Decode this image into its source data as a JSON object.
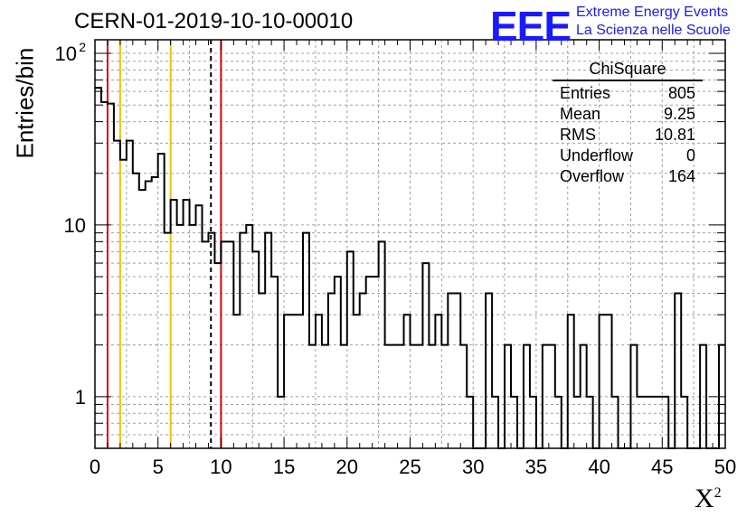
{
  "title": "CERN-01-2019-10-10-00010",
  "logo": {
    "mark": "EEE",
    "line1": "Extreme Energy Events",
    "line2": "La Scienza nelle Scuole",
    "color": "#1a1aff"
  },
  "stats": {
    "name": "ChiSquare",
    "rows": [
      {
        "label": "Entries",
        "value": "805"
      },
      {
        "label": "Mean",
        "value": "9.25"
      },
      {
        "label": "RMS",
        "value": "10.81"
      },
      {
        "label": "Underflow",
        "value": "0"
      },
      {
        "label": "Overflow",
        "value": "164"
      }
    ]
  },
  "chart_data": {
    "type": "histogram",
    "xlabel": "X",
    "xlabel_sup": "2",
    "ylabel": "Entries/bin",
    "xlim": [
      0,
      50
    ],
    "ylim": [
      0.5,
      120
    ],
    "yscale": "log",
    "bin_width": 0.5,
    "x_ticks": [
      "0",
      "5",
      "10",
      "15",
      "20",
      "25",
      "30",
      "35",
      "40",
      "45",
      "50"
    ],
    "y_ticks": [
      {
        "value": 1,
        "label": "1"
      },
      {
        "value": 10,
        "label": "10"
      },
      {
        "value": 100,
        "label": "10",
        "sup": "2"
      }
    ],
    "grid": true,
    "values": [
      63,
      52,
      51,
      31,
      24,
      31,
      20,
      16,
      18,
      19,
      26,
      9,
      14,
      10,
      14,
      10,
      13,
      8,
      9,
      6,
      8,
      8,
      3,
      9,
      10,
      7,
      4,
      9,
      5,
      1,
      3,
      3,
      3,
      9,
      2,
      3,
      2,
      4,
      5,
      2,
      7,
      3,
      4,
      5,
      5,
      8,
      2,
      2,
      2,
      3,
      2,
      2,
      6,
      2,
      3,
      2,
      4,
      4,
      2,
      1,
      0,
      0,
      4,
      1,
      0.5,
      2,
      1,
      0,
      2,
      1,
      0,
      2,
      2,
      1,
      0,
      3,
      1,
      2,
      1,
      0,
      3,
      3,
      1,
      0,
      0,
      2,
      1,
      1,
      1,
      1,
      1,
      0,
      4,
      1,
      0,
      0,
      2,
      0,
      0,
      2
    ],
    "vlines": [
      {
        "x": 1,
        "color": "#e00000",
        "style": "solid"
      },
      {
        "x": 2,
        "color": "#f2c200",
        "style": "solid"
      },
      {
        "x": 6,
        "color": "#f2c200",
        "style": "solid"
      },
      {
        "x": 9.2,
        "color": "#000000",
        "style": "dashed"
      },
      {
        "x": 10,
        "color": "#e00000",
        "style": "solid"
      }
    ]
  }
}
